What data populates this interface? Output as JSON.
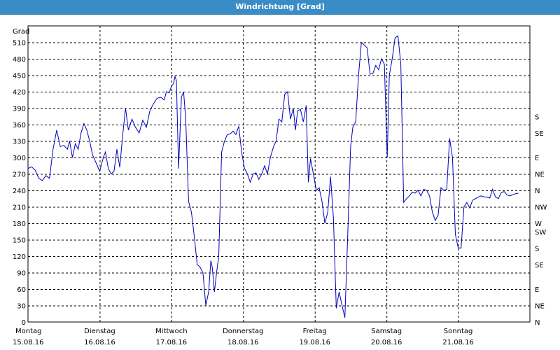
{
  "window": {
    "title": "Windrichtung [Grad]"
  },
  "colors": {
    "titlebar": "#3a8cc6",
    "line": "#0000bb",
    "grid": "#000000"
  },
  "chart_data": {
    "type": "line",
    "title": "Windrichtung [Grad]",
    "ylabel": "Grad",
    "ylim": [
      0,
      540
    ],
    "yticks": [
      0,
      30,
      60,
      90,
      120,
      150,
      180,
      210,
      240,
      270,
      300,
      330,
      360,
      390,
      420,
      450,
      480,
      510
    ],
    "right_axis": {
      "labels": [
        "N",
        "NE",
        "E",
        "SE",
        "S",
        "SW",
        "W",
        "NW",
        "N",
        "NE",
        "E",
        "SE",
        "S"
      ],
      "values": [
        0,
        30,
        60,
        90,
        120,
        150,
        180,
        210,
        240,
        270,
        300,
        330,
        360,
        390,
        420,
        450,
        480,
        510,
        540
      ]
    },
    "right_ticks": [
      {
        "value": 0,
        "label": "N"
      },
      {
        "value": 30,
        "label": "NE"
      },
      {
        "value": 60,
        "label": "E"
      },
      {
        "value": 105,
        "label": "SE"
      },
      {
        "value": 135,
        "label": "S"
      },
      {
        "value": 165,
        "label": "SW"
      },
      {
        "value": 180,
        "label": "W"
      },
      {
        "value": 210,
        "label": "NW"
      },
      {
        "value": 240,
        "label": "N"
      },
      {
        "value": 270,
        "label": "NE"
      },
      {
        "value": 300,
        "label": "E"
      },
      {
        "value": 345,
        "label": "SE"
      },
      {
        "value": 375,
        "label": "S"
      }
    ],
    "xlim": [
      0,
      7
    ],
    "x_labels": [
      {
        "day": "Montag",
        "date": "15.08.16"
      },
      {
        "day": "Dienstag",
        "date": "16.08.16"
      },
      {
        "day": "Mittwoch",
        "date": "17.08.16"
      },
      {
        "day": "Donnerstag",
        "date": "18.08.16"
      },
      {
        "day": "Freitag",
        "date": "19.08.16"
      },
      {
        "day": "Samstag",
        "date": "20.08.16"
      },
      {
        "day": "Sonntag",
        "date": "21.08.16"
      }
    ],
    "grid": true,
    "series": [
      {
        "points": [
          [
            0.0,
            280
          ],
          [
            0.05,
            283
          ],
          [
            0.1,
            277
          ],
          [
            0.15,
            262
          ],
          [
            0.2,
            258
          ],
          [
            0.25,
            267
          ],
          [
            0.3,
            262
          ],
          [
            0.35,
            315
          ],
          [
            0.4,
            350
          ],
          [
            0.45,
            320
          ],
          [
            0.5,
            322
          ],
          [
            0.55,
            315
          ],
          [
            0.58,
            330
          ],
          [
            0.62,
            300
          ],
          [
            0.66,
            325
          ],
          [
            0.7,
            315
          ],
          [
            0.74,
            345
          ],
          [
            0.78,
            362
          ],
          [
            0.82,
            350
          ],
          [
            0.86,
            330
          ],
          [
            0.9,
            305
          ],
          [
            0.95,
            290
          ],
          [
            1.0,
            275
          ],
          [
            1.05,
            300
          ],
          [
            1.08,
            310
          ],
          [
            1.12,
            280
          ],
          [
            1.16,
            270
          ],
          [
            1.2,
            275
          ],
          [
            1.24,
            315
          ],
          [
            1.28,
            282
          ],
          [
            1.32,
            340
          ],
          [
            1.36,
            390
          ],
          [
            1.4,
            350
          ],
          [
            1.45,
            370
          ],
          [
            1.5,
            355
          ],
          [
            1.55,
            345
          ],
          [
            1.6,
            368
          ],
          [
            1.65,
            355
          ],
          [
            1.7,
            385
          ],
          [
            1.75,
            398
          ],
          [
            1.8,
            408
          ],
          [
            1.85,
            410
          ],
          [
            1.9,
            405
          ],
          [
            1.93,
            420
          ],
          [
            1.97,
            418
          ],
          [
            2.0,
            430
          ],
          [
            2.03,
            435
          ],
          [
            2.05,
            448
          ],
          [
            2.07,
            440
          ],
          [
            2.1,
            280
          ],
          [
            2.14,
            410
          ],
          [
            2.17,
            420
          ],
          [
            2.2,
            370
          ],
          [
            2.24,
            220
          ],
          [
            2.28,
            200
          ],
          [
            2.32,
            155
          ],
          [
            2.36,
            105
          ],
          [
            2.4,
            100
          ],
          [
            2.44,
            90
          ],
          [
            2.48,
            30
          ],
          [
            2.52,
            55
          ],
          [
            2.55,
            112
          ],
          [
            2.57,
            100
          ],
          [
            2.6,
            55
          ],
          [
            2.63,
            90
          ],
          [
            2.66,
            120
          ],
          [
            2.7,
            310
          ],
          [
            2.74,
            330
          ],
          [
            2.78,
            342
          ],
          [
            2.82,
            343
          ],
          [
            2.86,
            348
          ],
          [
            2.9,
            342
          ],
          [
            2.94,
            357
          ],
          [
            2.98,
            310
          ],
          [
            3.02,
            280
          ],
          [
            3.06,
            270
          ],
          [
            3.1,
            255
          ],
          [
            3.14,
            270
          ],
          [
            3.18,
            272
          ],
          [
            3.22,
            260
          ],
          [
            3.26,
            270
          ],
          [
            3.3,
            285
          ],
          [
            3.34,
            270
          ],
          [
            3.38,
            300
          ],
          [
            3.42,
            318
          ],
          [
            3.46,
            330
          ],
          [
            3.5,
            370
          ],
          [
            3.54,
            365
          ],
          [
            3.58,
            415
          ],
          [
            3.62,
            420
          ],
          [
            3.66,
            370
          ],
          [
            3.7,
            390
          ],
          [
            3.73,
            350
          ],
          [
            3.76,
            385
          ],
          [
            3.8,
            388
          ],
          [
            3.84,
            365
          ],
          [
            3.88,
            395
          ],
          [
            3.91,
            255
          ],
          [
            3.94,
            298
          ],
          [
            3.98,
            270
          ],
          [
            4.02,
            240
          ],
          [
            4.06,
            245
          ],
          [
            4.1,
            220
          ],
          [
            4.14,
            180
          ],
          [
            4.18,
            200
          ],
          [
            4.22,
            265
          ],
          [
            4.26,
            190
          ],
          [
            4.3,
            25
          ],
          [
            4.34,
            55
          ],
          [
            4.38,
            30
          ],
          [
            4.42,
            8
          ],
          [
            4.46,
            160
          ],
          [
            4.5,
            320
          ],
          [
            4.53,
            355
          ],
          [
            4.57,
            365
          ],
          [
            4.61,
            450
          ],
          [
            4.65,
            510
          ],
          [
            4.69,
            505
          ],
          [
            4.73,
            500
          ],
          [
            4.77,
            452
          ],
          [
            4.81,
            453
          ],
          [
            4.85,
            468
          ],
          [
            4.89,
            460
          ],
          [
            4.93,
            480
          ],
          [
            4.97,
            470
          ],
          [
            5.01,
            300
          ],
          [
            5.04,
            450
          ],
          [
            5.08,
            480
          ],
          [
            5.12,
            518
          ],
          [
            5.16,
            522
          ],
          [
            5.2,
            470
          ],
          [
            5.24,
            218
          ],
          [
            5.28,
            225
          ],
          [
            5.32,
            230
          ],
          [
            5.36,
            237
          ],
          [
            5.4,
            235
          ],
          [
            5.44,
            240
          ],
          [
            5.48,
            230
          ],
          [
            5.52,
            242
          ],
          [
            5.56,
            240
          ],
          [
            5.6,
            230
          ],
          [
            5.64,
            200
          ],
          [
            5.68,
            185
          ],
          [
            5.72,
            195
          ],
          [
            5.76,
            245
          ],
          [
            5.8,
            240
          ],
          [
            5.84,
            242
          ],
          [
            5.88,
            335
          ],
          [
            5.92,
            300
          ],
          [
            5.96,
            160
          ],
          [
            6.0,
            135
          ],
          [
            6.04,
            135
          ],
          [
            6.08,
            210
          ],
          [
            6.12,
            218
          ],
          [
            6.16,
            208
          ],
          [
            6.2,
            222
          ],
          [
            6.24,
            225
          ],
          [
            6.28,
            228
          ],
          [
            6.32,
            230
          ],
          [
            6.36,
            228
          ],
          [
            6.4,
            228
          ],
          [
            6.44,
            226
          ],
          [
            6.48,
            242
          ],
          [
            6.52,
            228
          ],
          [
            6.56,
            225
          ],
          [
            6.6,
            236
          ],
          [
            6.64,
            238
          ],
          [
            6.68,
            232
          ],
          [
            6.72,
            230
          ],
          [
            6.76,
            232
          ],
          [
            6.8,
            234
          ],
          [
            6.84,
            235
          ]
        ]
      }
    ]
  }
}
